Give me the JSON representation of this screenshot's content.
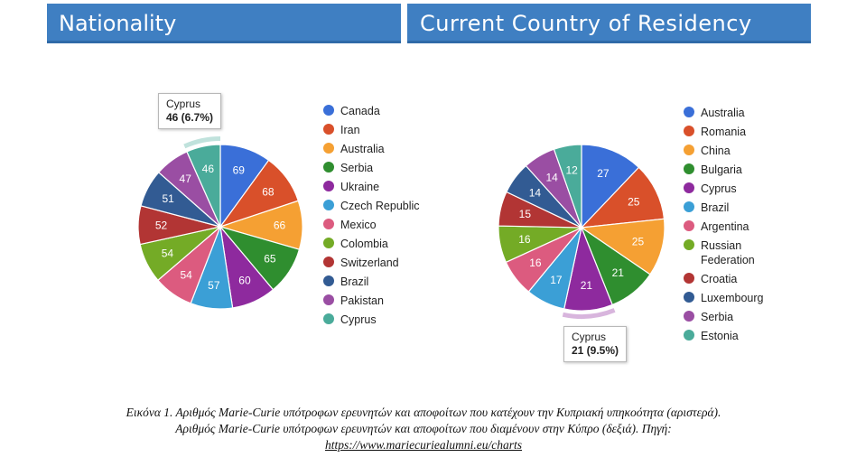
{
  "headers": {
    "left": "Nationality",
    "right": "Current Country of Residency"
  },
  "chart_data": [
    {
      "type": "pie",
      "title": "Nationality",
      "legend_position": "right",
      "slices": [
        {
          "label": "Canada",
          "value": 69,
          "color": "#3a6fd8"
        },
        {
          "label": "Iran",
          "value": 68,
          "color": "#d9502a"
        },
        {
          "label": "Australia",
          "value": 66,
          "color": "#f5a033"
        },
        {
          "label": "Serbia",
          "value": 65,
          "color": "#2f8e2f"
        },
        {
          "label": "Ukraine",
          "value": 60,
          "color": "#8e2a9e"
        },
        {
          "label": "Czech Republic",
          "value": 57,
          "color": "#3b9fd6"
        },
        {
          "label": "Mexico",
          "value": 54,
          "color": "#dc5b7f"
        },
        {
          "label": "Colombia",
          "value": 54,
          "color": "#74ab26"
        },
        {
          "label": "Switzerland",
          "value": 52,
          "color": "#b23534"
        },
        {
          "label": "Brazil",
          "value": 51,
          "color": "#325b93"
        },
        {
          "label": "Pakistan",
          "value": 47,
          "color": "#9a4ea3"
        },
        {
          "label": "Cyprus",
          "value": 46,
          "color": "#4aab9a"
        }
      ],
      "tooltip": {
        "label": "Cyprus",
        "value": "46 (6.7%)"
      }
    },
    {
      "type": "pie",
      "title": "Current Country of Residency",
      "legend_position": "right",
      "slices": [
        {
          "label": "Australia",
          "value": 27,
          "color": "#3a6fd8"
        },
        {
          "label": "Romania",
          "value": 25,
          "color": "#d9502a"
        },
        {
          "label": "China",
          "value": 25,
          "color": "#f5a033"
        },
        {
          "label": "Bulgaria",
          "value": 21,
          "color": "#2f8e2f"
        },
        {
          "label": "Cyprus",
          "value": 21,
          "color": "#8e2a9e"
        },
        {
          "label": "Brazil",
          "value": 17,
          "color": "#3b9fd6"
        },
        {
          "label": "Argentina",
          "value": 16,
          "color": "#dc5b7f"
        },
        {
          "label": "Russian Federation",
          "value": 16,
          "color": "#74ab26"
        },
        {
          "label": "Croatia",
          "value": 15,
          "color": "#b23534"
        },
        {
          "label": "Luxembourg",
          "value": 14,
          "color": "#325b93"
        },
        {
          "label": "Serbia",
          "value": 14,
          "color": "#9a4ea3"
        },
        {
          "label": "Estonia",
          "value": 12,
          "color": "#4aab9a"
        }
      ],
      "tooltip": {
        "label": "Cyprus",
        "value": "21 (9.5%)"
      }
    }
  ],
  "caption": {
    "line1": "Εικόνα 1. Αριθμός Marie-Curie υπότροφων ερευνητών και αποφοίτων που κατέχουν την Κυπριακή υπηκοότητα (αριστερά).",
    "line2": "Αριθμός Marie-Curie υπότροφων ερευνητών και αποφοίτων που διαμένουν στην Κύπρο (δεξιά). Πηγή:",
    "line3": "https://www.mariecuriealumni.eu/charts"
  }
}
